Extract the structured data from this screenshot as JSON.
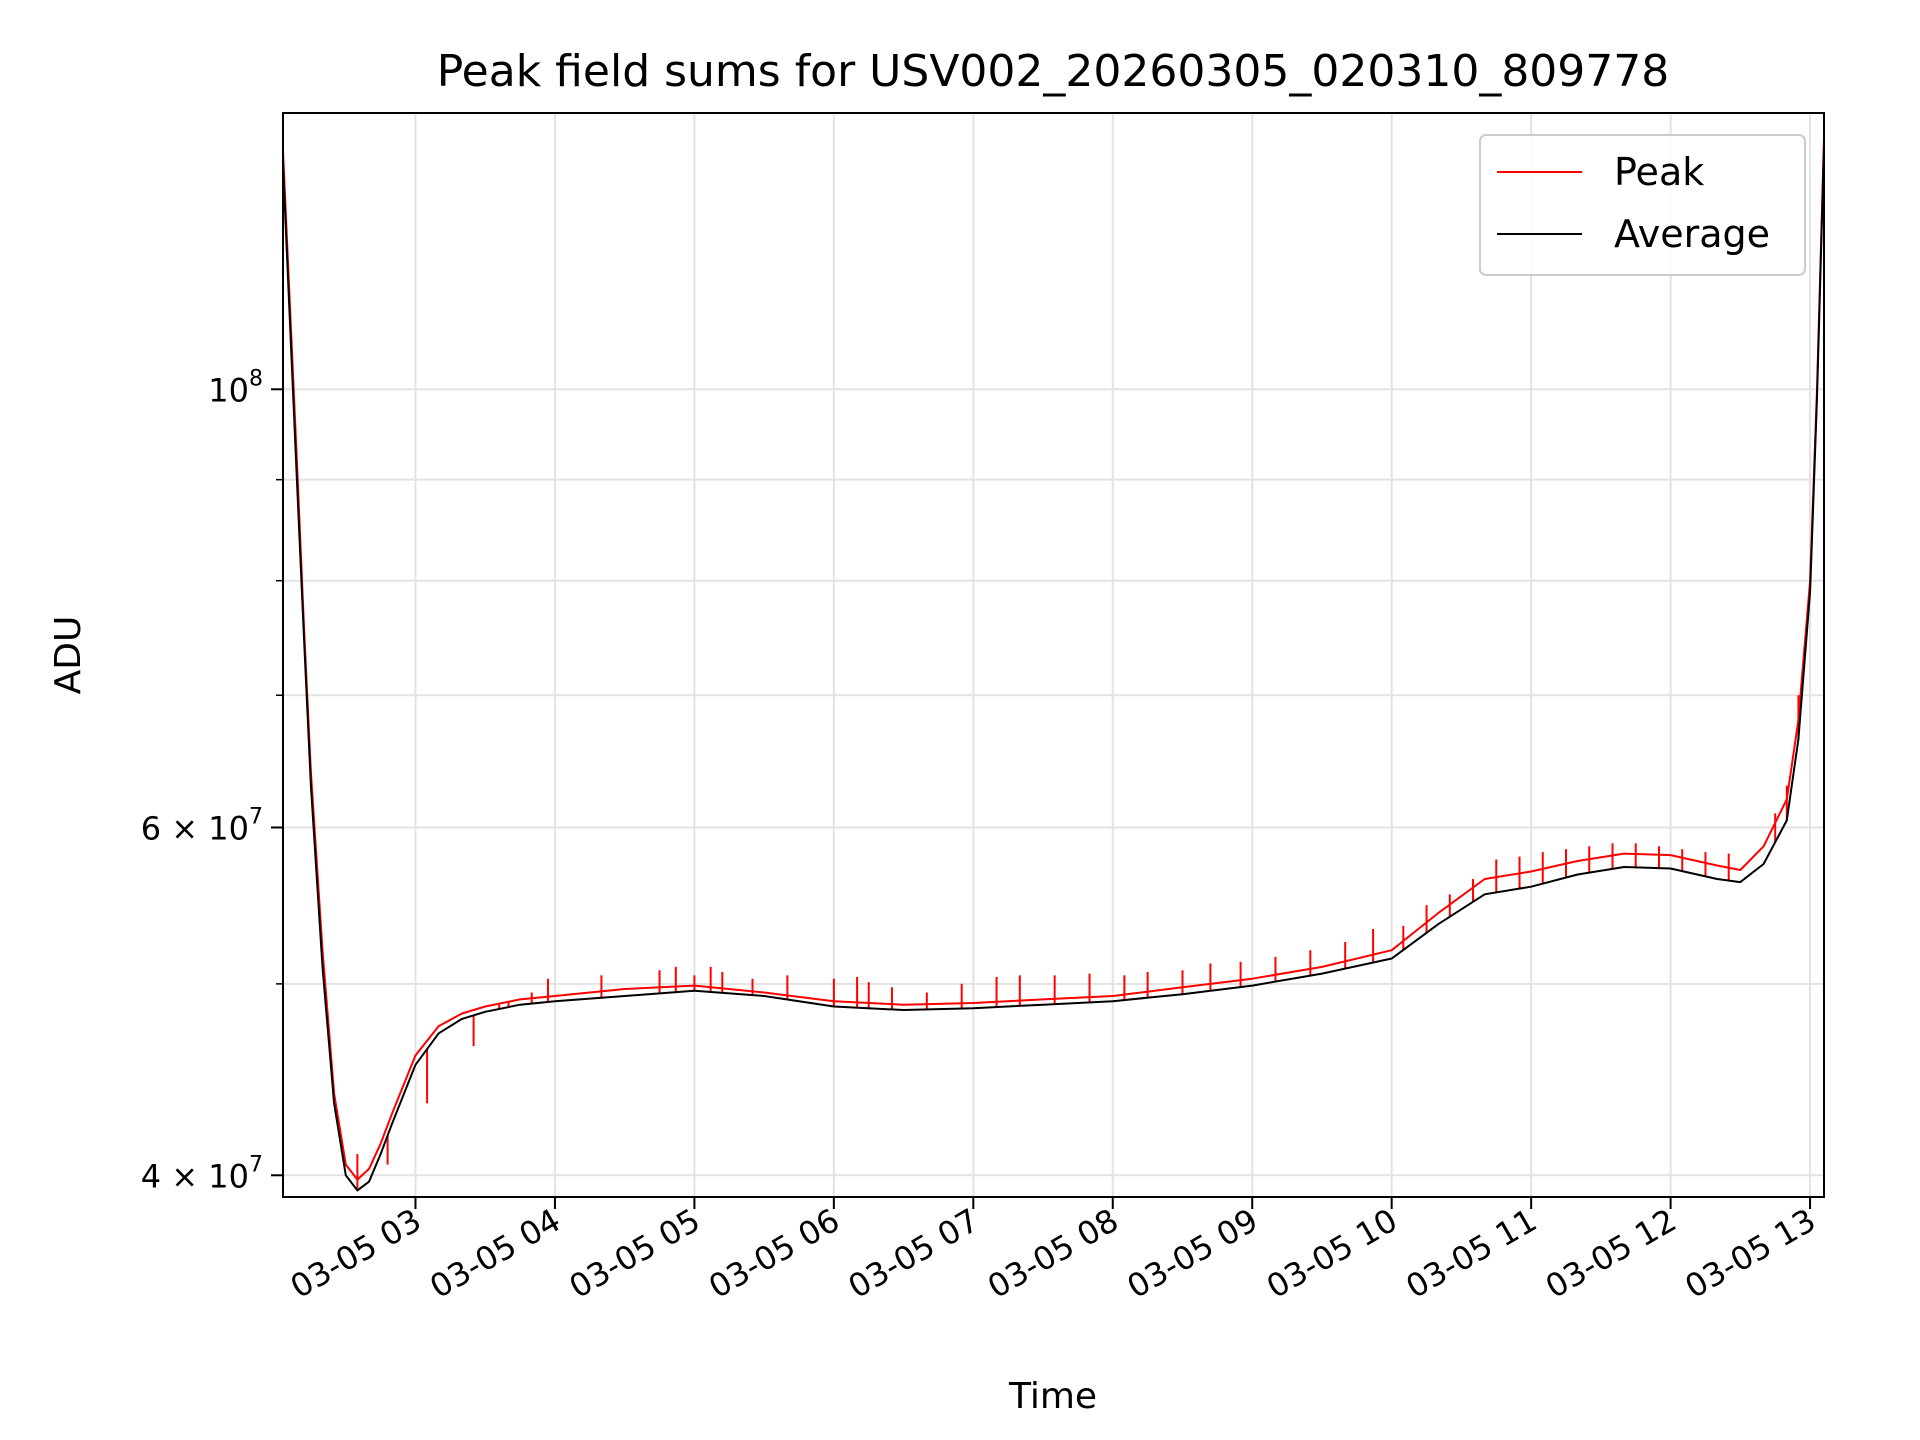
{
  "chart_data": {
    "type": "line",
    "title": "Peak field sums for USV002_20260305_020310_809778",
    "xlabel": "Time",
    "ylabel": "ADU",
    "y_scale": "log",
    "ylim": [
      39000000,
      138000000
    ],
    "xlim": [
      "2026-03-05 02:03",
      "2026-03-05 13:06"
    ],
    "grid": true,
    "legend_position": "top-right",
    "x_ticks": [
      {
        "t": "2026-03-05 03:00",
        "label": "03-05 03"
      },
      {
        "t": "2026-03-05 04:00",
        "label": "03-05 04"
      },
      {
        "t": "2026-03-05 05:00",
        "label": "03-05 05"
      },
      {
        "t": "2026-03-05 06:00",
        "label": "03-05 06"
      },
      {
        "t": "2026-03-05 07:00",
        "label": "03-05 07"
      },
      {
        "t": "2026-03-05 08:00",
        "label": "03-05 08"
      },
      {
        "t": "2026-03-05 09:00",
        "label": "03-05 09"
      },
      {
        "t": "2026-03-05 10:00",
        "label": "03-05 10"
      },
      {
        "t": "2026-03-05 11:00",
        "label": "03-05 11"
      },
      {
        "t": "2026-03-05 12:00",
        "label": "03-05 12"
      },
      {
        "t": "2026-03-05 13:00",
        "label": "03-05 13"
      }
    ],
    "y_ticks": [
      {
        "v": 40000000,
        "base": "4 × 10",
        "exp": "7"
      },
      {
        "v": 60000000,
        "base": "6 × 10",
        "exp": "7"
      },
      {
        "v": 100000000,
        "base": "10",
        "exp": "8"
      }
    ],
    "y_minor_ticks": [
      50000000,
      70000000,
      80000000,
      90000000
    ],
    "series": [
      {
        "name": "Peak",
        "color": "#ff0000",
        "x": [
          "2026-03-05 02:03",
          "2026-03-05 02:06",
          "2026-03-05 02:09",
          "2026-03-05 02:12",
          "2026-03-05 02:15",
          "2026-03-05 02:20",
          "2026-03-05 02:25",
          "2026-03-05 02:30",
          "2026-03-05 02:35",
          "2026-03-05 02:40",
          "2026-03-05 02:45",
          "2026-03-05 02:50",
          "2026-03-05 03:00",
          "2026-03-05 03:10",
          "2026-03-05 03:20",
          "2026-03-05 03:30",
          "2026-03-05 03:45",
          "2026-03-05 04:00",
          "2026-03-05 04:30",
          "2026-03-05 05:00",
          "2026-03-05 05:30",
          "2026-03-05 06:00",
          "2026-03-05 06:30",
          "2026-03-05 07:00",
          "2026-03-05 07:30",
          "2026-03-05 08:00",
          "2026-03-05 08:30",
          "2026-03-05 09:00",
          "2026-03-05 09:30",
          "2026-03-05 10:00",
          "2026-03-05 10:20",
          "2026-03-05 10:40",
          "2026-03-05 11:00",
          "2026-03-05 11:20",
          "2026-03-05 11:40",
          "2026-03-05 12:00",
          "2026-03-05 12:20",
          "2026-03-05 12:30",
          "2026-03-05 12:40",
          "2026-03-05 12:50",
          "2026-03-05 12:55",
          "2026-03-05 13:00",
          "2026-03-05 13:03",
          "2026-03-05 13:06"
        ],
        "values": [
          132000000,
          110000000,
          92000000,
          76000000,
          64000000,
          52000000,
          44000000,
          40500000,
          39800000,
          40300000,
          41500000,
          43000000,
          46000000,
          47600000,
          48300000,
          48700000,
          49100000,
          49300000,
          49700000,
          49900000,
          49500000,
          49000000,
          48800000,
          48900000,
          49100000,
          49300000,
          49800000,
          50300000,
          51000000,
          52000000,
          54300000,
          56500000,
          57000000,
          57700000,
          58200000,
          58100000,
          57400000,
          57100000,
          58700000,
          62000000,
          68000000,
          80000000,
          100000000,
          134000000
        ],
        "spikes": [
          [
            "2026-03-05 02:35",
            41000000
          ],
          [
            "2026-03-05 02:48",
            40500000
          ],
          [
            "2026-03-05 03:05",
            43500000
          ],
          [
            "2026-03-05 03:25",
            46500000
          ],
          [
            "2026-03-05 03:36",
            48800000
          ],
          [
            "2026-03-05 03:40",
            49000000
          ],
          [
            "2026-03-05 03:50",
            49500000
          ],
          [
            "2026-03-05 03:57",
            50300000
          ],
          [
            "2026-03-05 04:20",
            50500000
          ],
          [
            "2026-03-05 04:45",
            50800000
          ],
          [
            "2026-03-05 04:52",
            51000000
          ],
          [
            "2026-03-05 05:00",
            50500000
          ],
          [
            "2026-03-05 05:07",
            51000000
          ],
          [
            "2026-03-05 05:12",
            50700000
          ],
          [
            "2026-03-05 05:25",
            50300000
          ],
          [
            "2026-03-05 05:40",
            50500000
          ],
          [
            "2026-03-05 06:00",
            50300000
          ],
          [
            "2026-03-05 06:10",
            50400000
          ],
          [
            "2026-03-05 06:15",
            50100000
          ],
          [
            "2026-03-05 06:25",
            49800000
          ],
          [
            "2026-03-05 06:40",
            49500000
          ],
          [
            "2026-03-05 06:55",
            50000000
          ],
          [
            "2026-03-05 07:10",
            50400000
          ],
          [
            "2026-03-05 07:20",
            50500000
          ],
          [
            "2026-03-05 07:35",
            50500000
          ],
          [
            "2026-03-05 07:50",
            50600000
          ],
          [
            "2026-03-05 08:05",
            50500000
          ],
          [
            "2026-03-05 08:15",
            50700000
          ],
          [
            "2026-03-05 08:30",
            50800000
          ],
          [
            "2026-03-05 08:42",
            51200000
          ],
          [
            "2026-03-05 08:55",
            51300000
          ],
          [
            "2026-03-05 09:10",
            51600000
          ],
          [
            "2026-03-05 09:25",
            52000000
          ],
          [
            "2026-03-05 09:40",
            52500000
          ],
          [
            "2026-03-05 09:52",
            53300000
          ],
          [
            "2026-03-05 10:05",
            53500000
          ],
          [
            "2026-03-05 10:15",
            54800000
          ],
          [
            "2026-03-05 10:25",
            55500000
          ],
          [
            "2026-03-05 10:35",
            56500000
          ],
          [
            "2026-03-05 10:45",
            57800000
          ],
          [
            "2026-03-05 10:55",
            58000000
          ],
          [
            "2026-03-05 11:05",
            58300000
          ],
          [
            "2026-03-05 11:15",
            58500000
          ],
          [
            "2026-03-05 11:25",
            58700000
          ],
          [
            "2026-03-05 11:35",
            58900000
          ],
          [
            "2026-03-05 11:45",
            58900000
          ],
          [
            "2026-03-05 11:55",
            58700000
          ],
          [
            "2026-03-05 12:05",
            58500000
          ],
          [
            "2026-03-05 12:15",
            58300000
          ],
          [
            "2026-03-05 12:25",
            58200000
          ],
          [
            "2026-03-05 12:45",
            61000000
          ],
          [
            "2026-03-05 12:50",
            63000000
          ],
          [
            "2026-03-05 12:55",
            70000000
          ]
        ]
      },
      {
        "name": "Average",
        "color": "#000000",
        "x": [
          "2026-03-05 02:03",
          "2026-03-05 02:06",
          "2026-03-05 02:09",
          "2026-03-05 02:12",
          "2026-03-05 02:15",
          "2026-03-05 02:20",
          "2026-03-05 02:25",
          "2026-03-05 02:30",
          "2026-03-05 02:35",
          "2026-03-05 02:40",
          "2026-03-05 02:45",
          "2026-03-05 02:50",
          "2026-03-05 03:00",
          "2026-03-05 03:10",
          "2026-03-05 03:20",
          "2026-03-05 03:30",
          "2026-03-05 03:45",
          "2026-03-05 04:00",
          "2026-03-05 04:30",
          "2026-03-05 05:00",
          "2026-03-05 05:30",
          "2026-03-05 06:00",
          "2026-03-05 06:30",
          "2026-03-05 07:00",
          "2026-03-05 07:30",
          "2026-03-05 08:00",
          "2026-03-05 08:30",
          "2026-03-05 09:00",
          "2026-03-05 09:30",
          "2026-03-05 10:00",
          "2026-03-05 10:20",
          "2026-03-05 10:40",
          "2026-03-05 11:00",
          "2026-03-05 11:20",
          "2026-03-05 11:40",
          "2026-03-05 12:00",
          "2026-03-05 12:20",
          "2026-03-05 12:30",
          "2026-03-05 12:40",
          "2026-03-05 12:50",
          "2026-03-05 12:55",
          "2026-03-05 13:00",
          "2026-03-05 13:03",
          "2026-03-05 13:06"
        ],
        "values": [
          130000000,
          108000000,
          90000000,
          75000000,
          63000000,
          51000000,
          43500000,
          40000000,
          39300000,
          39700000,
          41000000,
          42500000,
          45500000,
          47200000,
          48000000,
          48400000,
          48800000,
          49000000,
          49300000,
          49600000,
          49300000,
          48700000,
          48500000,
          48600000,
          48800000,
          49000000,
          49400000,
          49900000,
          50600000,
          51500000,
          53600000,
          55500000,
          56000000,
          56800000,
          57300000,
          57200000,
          56500000,
          56300000,
          57500000,
          60500000,
          66500000,
          79000000,
          99000000,
          133000000
        ]
      }
    ]
  }
}
